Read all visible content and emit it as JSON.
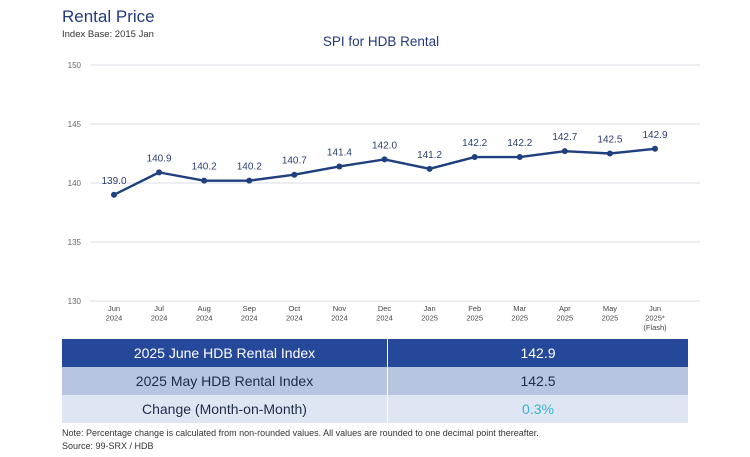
{
  "header": {
    "title": "Rental Price",
    "subtitle": "Index Base: 2015 Jan"
  },
  "chart_data": {
    "type": "line",
    "title": "SPI for HDB Rental",
    "xlabel": "",
    "ylabel": "",
    "ylim": [
      130,
      150
    ],
    "yticks": [
      130,
      135,
      140,
      145,
      150
    ],
    "grid": true,
    "categories": [
      [
        "Jun",
        "2024"
      ],
      [
        "Jul",
        "2024"
      ],
      [
        "Aug",
        "2024"
      ],
      [
        "Sep",
        "2024"
      ],
      [
        "Oct",
        "2024"
      ],
      [
        "Nov",
        "2024"
      ],
      [
        "Dec",
        "2024"
      ],
      [
        "Jan",
        "2025"
      ],
      [
        "Feb",
        "2025"
      ],
      [
        "Mar",
        "2025"
      ],
      [
        "Apr",
        "2025"
      ],
      [
        "May",
        "2025"
      ],
      [
        "Jun",
        "2025*",
        "(Flash)"
      ]
    ],
    "series": [
      {
        "name": "SPI for HDB Rental",
        "color": "#1f3f7f",
        "values": [
          139.0,
          140.9,
          140.2,
          140.2,
          140.7,
          141.4,
          142.0,
          141.2,
          142.2,
          142.2,
          142.7,
          142.5,
          142.9
        ],
        "labels": [
          "139.0",
          "140.9",
          "140.2",
          "140.2",
          "140.7",
          "141.4",
          "142.0",
          "141.2",
          "142.2",
          "142.2",
          "142.7",
          "142.5",
          "142.9"
        ]
      }
    ]
  },
  "summary": {
    "rows": [
      {
        "label": "2025 June HDB Rental Index",
        "value": "142.9"
      },
      {
        "label": "2025 May HDB Rental Index",
        "value": "142.5"
      },
      {
        "label": "Change (Month-on-Month)",
        "value": "0.3%"
      }
    ]
  },
  "footer": {
    "note": "Note: Percentage change is calculated from non-rounded values.  All values are rounded to one decimal point thereafter.",
    "source": "Source: 99-SRX / HDB"
  },
  "colors": {
    "line": "#1f3f7f",
    "header_row": "#26489b",
    "row2": "#b8c5e0",
    "row3": "#dfe6f3",
    "change_text": "#38b1cf"
  }
}
